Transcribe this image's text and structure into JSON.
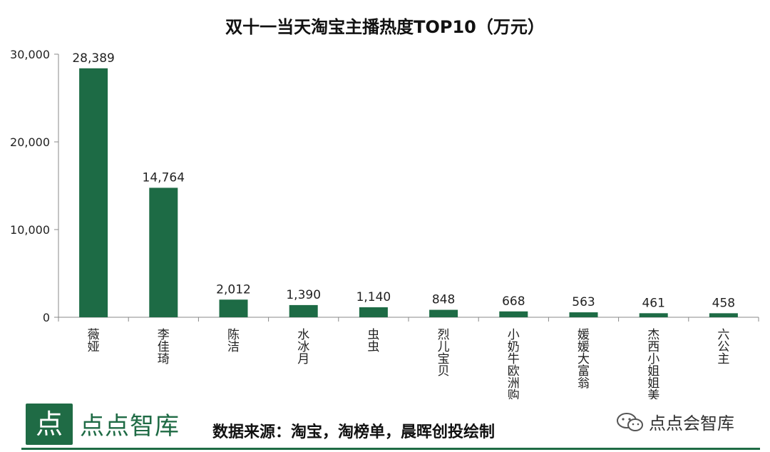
{
  "chart_data": {
    "type": "bar",
    "title": "双十一当天淘宝主播热度TOP10（万元）",
    "categories": [
      "薇娅",
      "李佳琦",
      "陈洁",
      "水冰月",
      "虫虫",
      "烈儿宝贝",
      "小奶牛欧洲购",
      "媛媛大富翁",
      "杰西小姐姐美国购",
      "六公主"
    ],
    "values": [
      28389,
      14764,
      2012,
      1390,
      1140,
      848,
      668,
      563,
      461,
      458
    ],
    "value_labels": [
      "28,389",
      "14,764",
      "2,012",
      "1,390",
      "1,140",
      "848",
      "668",
      "563",
      "461",
      "458"
    ],
    "ylim": [
      0,
      30000
    ],
    "yticks": [
      0,
      10000,
      20000,
      30000
    ],
    "ytick_labels": [
      "0",
      "10,000",
      "20,000",
      "30,000"
    ],
    "bar_color": "#1d6b45",
    "grid": false
  },
  "footer": {
    "logo_glyph": "点",
    "brand": "点点智库",
    "source": "数据来源：淘宝，淘榜单，晨晖创投绘制",
    "wechat": "点点会智库"
  },
  "colors": {
    "accent": "#1f6b45"
  }
}
